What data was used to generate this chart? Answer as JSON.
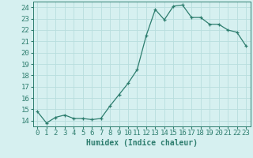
{
  "x": [
    0,
    1,
    2,
    3,
    4,
    5,
    6,
    7,
    8,
    9,
    10,
    11,
    12,
    13,
    14,
    15,
    16,
    17,
    18,
    19,
    20,
    21,
    22,
    23
  ],
  "y": [
    14.8,
    13.8,
    14.3,
    14.5,
    14.2,
    14.2,
    14.1,
    14.2,
    15.3,
    16.3,
    17.3,
    18.5,
    21.5,
    23.8,
    22.9,
    24.1,
    24.2,
    23.1,
    23.1,
    22.5,
    22.5,
    22.0,
    21.8,
    20.6
  ],
  "xlabel": "Humidex (Indice chaleur)",
  "xlim": [
    -0.5,
    23.5
  ],
  "ylim": [
    13.5,
    24.5
  ],
  "yticks": [
    14,
    15,
    16,
    17,
    18,
    19,
    20,
    21,
    22,
    23,
    24
  ],
  "xticks": [
    0,
    1,
    2,
    3,
    4,
    5,
    6,
    7,
    8,
    9,
    10,
    11,
    12,
    13,
    14,
    15,
    16,
    17,
    18,
    19,
    20,
    21,
    22,
    23
  ],
  "line_color": "#2d7d6e",
  "bg_color": "#d6f0f0",
  "grid_color": "#b8dede",
  "tick_color": "#2d7d6e",
  "label_color": "#2d7d6e",
  "font_size": 7.0
}
